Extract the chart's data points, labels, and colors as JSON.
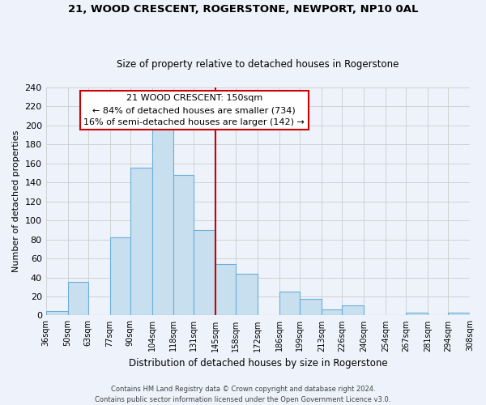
{
  "title1": "21, WOOD CRESCENT, ROGERSTONE, NEWPORT, NP10 0AL",
  "title2": "Size of property relative to detached houses in Rogerstone",
  "xlabel": "Distribution of detached houses by size in Rogerstone",
  "ylabel": "Number of detached properties",
  "bin_edges": [
    36,
    50,
    63,
    77,
    90,
    104,
    118,
    131,
    145,
    158,
    172,
    186,
    199,
    213,
    226,
    240,
    254,
    267,
    281,
    294,
    308
  ],
  "bin_labels": [
    "36sqm",
    "50sqm",
    "63sqm",
    "77sqm",
    "90sqm",
    "104sqm",
    "118sqm",
    "131sqm",
    "145sqm",
    "158sqm",
    "172sqm",
    "186sqm",
    "199sqm",
    "213sqm",
    "226sqm",
    "240sqm",
    "254sqm",
    "267sqm",
    "281sqm",
    "294sqm",
    "308sqm"
  ],
  "counts": [
    5,
    35,
    0,
    82,
    156,
    200,
    148,
    90,
    54,
    44,
    0,
    25,
    17,
    6,
    11,
    0,
    0,
    3,
    0,
    3
  ],
  "bar_color": "#c8dff0",
  "bar_edge_color": "#6baed6",
  "vline_x": 145,
  "vline_color": "#cc0000",
  "annotation_title": "21 WOOD CRESCENT: 150sqm",
  "annotation_line1": "← 84% of detached houses are smaller (734)",
  "annotation_line2": "16% of semi-detached houses are larger (142) →",
  "annotation_box_color": "#ffffff",
  "annotation_box_edge": "#cc0000",
  "ylim": [
    0,
    240
  ],
  "yticks": [
    0,
    20,
    40,
    60,
    80,
    100,
    120,
    140,
    160,
    180,
    200,
    220,
    240
  ],
  "footer1": "Contains HM Land Registry data © Crown copyright and database right 2024.",
  "footer2": "Contains public sector information licensed under the Open Government Licence v3.0.",
  "bg_color": "#eef2fa"
}
